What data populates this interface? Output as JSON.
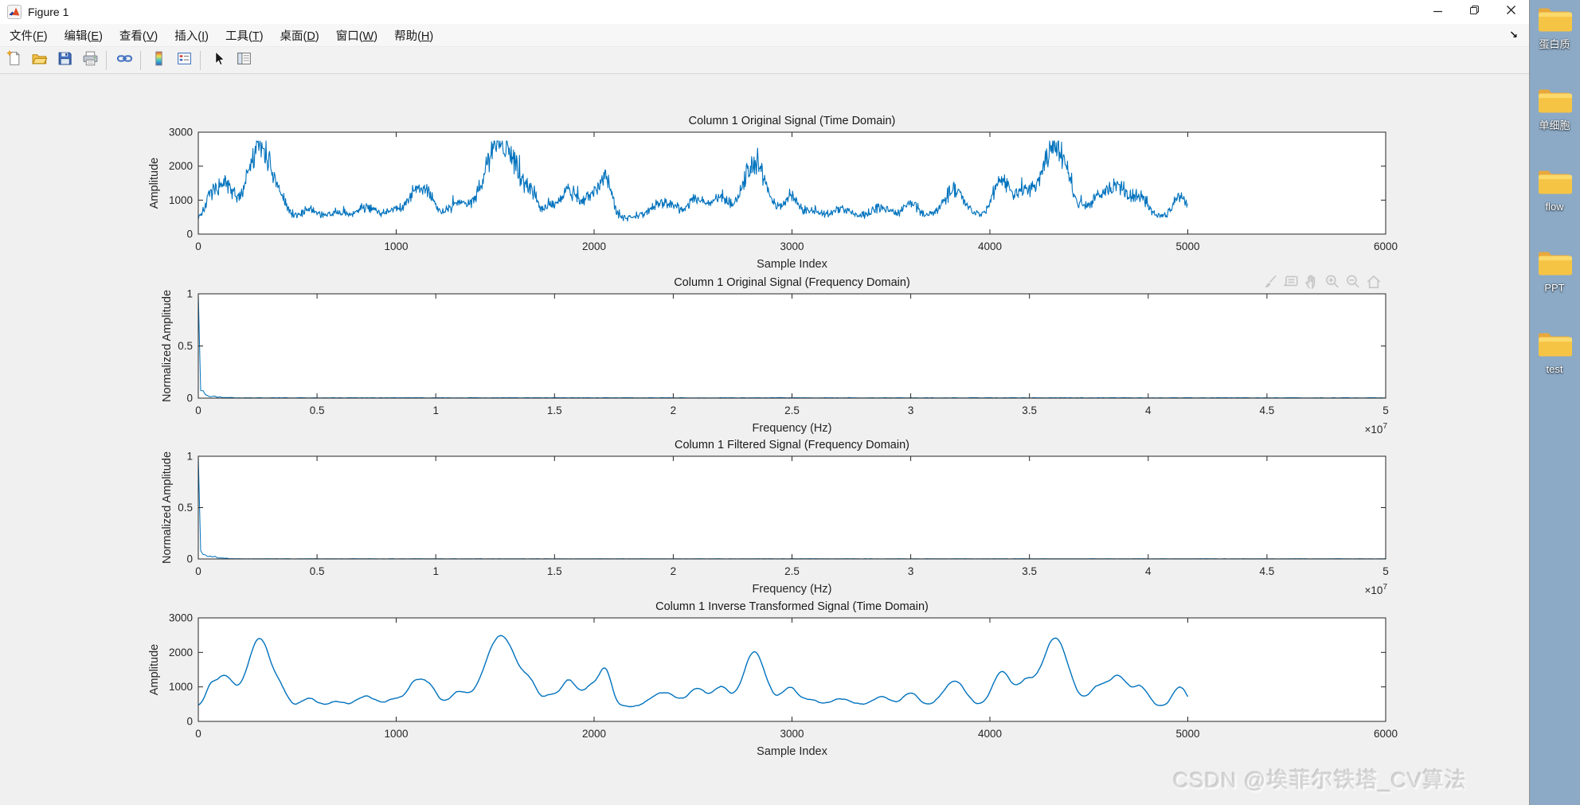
{
  "window": {
    "title": "Figure 1",
    "app_icon": "matlab-logo",
    "controls": [
      "minimize",
      "restore",
      "close"
    ]
  },
  "menu_bar": {
    "items": [
      {
        "text": "文件",
        "key": "F"
      },
      {
        "text": "编辑",
        "key": "E"
      },
      {
        "text": "查看",
        "key": "V"
      },
      {
        "text": "插入",
        "key": "I"
      },
      {
        "text": "工具",
        "key": "T"
      },
      {
        "text": "桌面",
        "key": "D"
      },
      {
        "text": "窗口",
        "key": "W"
      },
      {
        "text": "帮助",
        "key": "H"
      }
    ],
    "overflow_arrow": "↘"
  },
  "toolbar": {
    "buttons": [
      "new-figure",
      "open-file",
      "save-figure",
      "print-figure",
      "link-plot",
      "insert-colorbar",
      "insert-legend",
      "edit-plot",
      "property-inspector"
    ],
    "groups": [
      4,
      1,
      2,
      2
    ]
  },
  "axes_toolbar": {
    "buttons": [
      "brush",
      "datatip",
      "pan",
      "zoom-in",
      "zoom-out",
      "restore-view"
    ]
  },
  "desktop": {
    "folder_labels": [
      "蛋白质",
      "单细胞",
      "flow",
      "PPT",
      "test"
    ]
  },
  "watermark": {
    "text": "CSDN @埃菲尔铁塔_CV算法"
  },
  "colors": {
    "desktop": "#8caac6",
    "figure_bg": "#f0f0f0",
    "chrome_bg": "#ffffff",
    "line": "#0072BD",
    "axis": "#262626",
    "folder": "#f6c445",
    "watermark": "#d7d7d7"
  },
  "chart_data": [
    {
      "type": "line",
      "id": "time-original",
      "title": "Column 1 Original Signal (Time Domain)",
      "xlabel": "Sample Index",
      "ylabel": "Amplitude",
      "xlim": [
        0,
        6000
      ],
      "ylim": [
        0,
        3000
      ],
      "xticks": [
        0,
        1000,
        2000,
        3000,
        4000,
        5000,
        6000
      ],
      "xtick_labels": [
        "0",
        "1000",
        "2000",
        "3000",
        "4000",
        "5000",
        "6000"
      ],
      "yticks": [
        0,
        1000,
        2000,
        3000
      ],
      "ytick_labels": [
        "0",
        "1000",
        "2000",
        "3000"
      ],
      "line_color": "#0072BD",
      "signal": {
        "x_end": 5000,
        "baseline": 480,
        "noise_frac": 0.22,
        "noise_abs": 40,
        "clip_max": 2740,
        "seed": 7,
        "peaks": [
          [
            60,
            420,
            25
          ],
          [
            130,
            950,
            45
          ],
          [
            310,
            2120,
            60
          ],
          [
            420,
            300,
            30
          ],
          [
            560,
            250,
            40
          ],
          [
            700,
            150,
            40
          ],
          [
            850,
            320,
            50
          ],
          [
            1000,
            250,
            40
          ],
          [
            1090,
            620,
            35
          ],
          [
            1160,
            700,
            40
          ],
          [
            1310,
            420,
            40
          ],
          [
            1530,
            2220,
            80
          ],
          [
            1680,
            500,
            35
          ],
          [
            1780,
            300,
            30
          ],
          [
            1870,
            800,
            40
          ],
          [
            1990,
            650,
            45
          ],
          [
            2060,
            1000,
            30
          ],
          [
            2350,
            450,
            60
          ],
          [
            2520,
            550,
            45
          ],
          [
            2640,
            600,
            40
          ],
          [
            2810,
            1700,
            55
          ],
          [
            2990,
            600,
            40
          ],
          [
            3100,
            200,
            40
          ],
          [
            3250,
            250,
            50
          ],
          [
            3450,
            300,
            50
          ],
          [
            3600,
            420,
            40
          ],
          [
            3820,
            800,
            55
          ],
          [
            4060,
            1100,
            45
          ],
          [
            4180,
            700,
            40
          ],
          [
            4330,
            2150,
            65
          ],
          [
            4550,
            600,
            45
          ],
          [
            4650,
            900,
            45
          ],
          [
            4760,
            600,
            40
          ],
          [
            4960,
            620,
            35
          ]
        ]
      }
    },
    {
      "type": "line",
      "id": "freq-original",
      "title": "Column 1 Original Signal (Frequency Domain)",
      "xlabel": "Frequency (Hz)",
      "ylabel": "Normalized Amplitude",
      "xlim": [
        0,
        50000000
      ],
      "ylim": [
        0,
        1
      ],
      "xticks": [
        0,
        5000000,
        10000000,
        15000000,
        20000000,
        25000000,
        30000000,
        35000000,
        40000000,
        45000000,
        50000000
      ],
      "xtick_labels": [
        "0",
        "0.5",
        "1",
        "1.5",
        "2",
        "2.5",
        "3",
        "3.5",
        "4",
        "4.5",
        "5"
      ],
      "yticks": [
        0,
        0.5,
        1
      ],
      "ytick_labels": [
        "0",
        "0.5",
        "1"
      ],
      "exponent_label": {
        "base": "×10",
        "exp": "7"
      },
      "line_color": "#0072BD",
      "spectrum": {
        "dc": 1,
        "cluster_peak": 0.13,
        "cluster_decay": 350000,
        "cluster_extent": 1500000,
        "noise_floor": 0.005,
        "seed": 21
      }
    },
    {
      "type": "line",
      "id": "freq-filtered",
      "title": "Column 1 Filtered Signal (Frequency Domain)",
      "xlabel": "Frequency (Hz)",
      "ylabel": "Normalized Amplitude",
      "xlim": [
        0,
        50000000
      ],
      "ylim": [
        0,
        1
      ],
      "xticks": [
        0,
        5000000,
        10000000,
        15000000,
        20000000,
        25000000,
        30000000,
        35000000,
        40000000,
        45000000,
        50000000
      ],
      "xtick_labels": [
        "0",
        "0.5",
        "1",
        "1.5",
        "2",
        "2.5",
        "3",
        "3.5",
        "4",
        "4.5",
        "5"
      ],
      "yticks": [
        0,
        0.5,
        1
      ],
      "ytick_labels": [
        "0",
        "0.5",
        "1"
      ],
      "exponent_label": {
        "base": "×10",
        "exp": "7"
      },
      "line_color": "#0072BD",
      "spectrum": {
        "dc": 1,
        "cluster_peak": 0.13,
        "cluster_decay": 350000,
        "cluster_extent": 1500000,
        "noise_floor": 0.003,
        "seed": 33
      }
    },
    {
      "type": "line",
      "id": "time-inverse",
      "title": "Column 1 Inverse Transformed Signal (Time Domain)",
      "xlabel": "Sample Index",
      "ylabel": "Amplitude",
      "xlim": [
        0,
        6000
      ],
      "ylim": [
        0,
        3000
      ],
      "xticks": [
        0,
        1000,
        2000,
        3000,
        4000,
        5000,
        6000
      ],
      "xtick_labels": [
        "0",
        "1000",
        "2000",
        "3000",
        "4000",
        "5000",
        "6000"
      ],
      "yticks": [
        0,
        1000,
        2000,
        3000
      ],
      "ytick_labels": [
        "0",
        "1000",
        "2000",
        "3000"
      ],
      "line_color": "#0072BD",
      "signal": {
        "x_end": 5000,
        "baseline": 460,
        "scale": 0.93,
        "smooth": true,
        "peaks_from_chart": 0,
        "seed": 11
      }
    }
  ]
}
